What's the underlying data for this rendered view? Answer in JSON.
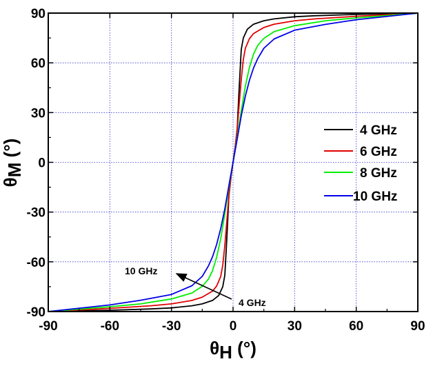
{
  "chart_data": {
    "type": "line",
    "title": "",
    "xlabel": {
      "symbol": "θ",
      "subscript": "H",
      "unit": " (°)"
    },
    "ylabel": {
      "symbol": "θ",
      "subscript": "M",
      "unit": " (°)"
    },
    "xlim": [
      -90,
      90
    ],
    "ylim": [
      -90,
      90
    ],
    "xticks": [
      -90,
      -60,
      -30,
      0,
      30,
      60,
      90
    ],
    "yticks": [
      -90,
      -60,
      -30,
      0,
      30,
      60,
      90
    ],
    "xtick_labels": [
      "-90",
      "-60",
      "-30",
      "0",
      "30",
      "60",
      "90"
    ],
    "ytick_labels": [
      "-90",
      "-60",
      "-30",
      "0",
      "30",
      "60",
      "90"
    ],
    "grid": true,
    "legend_position": "right",
    "series": [
      {
        "name": "4 GHz",
        "color": "#000000",
        "x": [
          -90,
          -60,
          -40,
          -30,
          -20,
          -15,
          -10,
          -7,
          -5,
          -4,
          -3,
          -2,
          -1,
          0,
          1,
          2,
          3,
          4,
          5,
          7,
          10,
          15,
          20,
          30,
          40,
          60,
          90
        ],
        "y": [
          -90,
          -89.2,
          -88.4,
          -87.8,
          -86.5,
          -85.4,
          -83.3,
          -80.3,
          -75.0,
          -68.0,
          -45.0,
          -20.0,
          -9.0,
          0,
          9.0,
          20.0,
          45.0,
          68.0,
          75.0,
          80.3,
          83.3,
          85.4,
          86.5,
          87.8,
          88.4,
          89.2,
          90
        ]
      },
      {
        "name": "6 GHz",
        "color": "#e00000",
        "x": [
          -90,
          -60,
          -40,
          -30,
          -20,
          -15,
          -10,
          -8,
          -6,
          -5,
          -4,
          -3,
          -2,
          -1,
          0,
          1,
          2,
          3,
          4,
          5,
          6,
          8,
          10,
          15,
          20,
          30,
          40,
          60,
          90
        ],
        "y": [
          -90,
          -88.1,
          -86.5,
          -85.4,
          -83.3,
          -81.3,
          -77.7,
          -74.6,
          -68.9,
          -62.0,
          -50.0,
          -35.0,
          -20.0,
          -9.0,
          0,
          9.0,
          20.0,
          35.0,
          50.0,
          62.0,
          68.9,
          74.6,
          77.7,
          81.3,
          83.3,
          85.4,
          86.5,
          88.1,
          90
        ]
      },
      {
        "name": "8 GHz",
        "color": "#00ee00",
        "x": [
          -90,
          -60,
          -45,
          -30,
          -20,
          -15,
          -12,
          -10,
          -8,
          -6,
          -4,
          -2,
          0,
          2,
          4,
          6,
          8,
          10,
          12,
          15,
          20,
          30,
          45,
          60,
          90
        ],
        "y": [
          -90,
          -87.1,
          -85.4,
          -82.4,
          -78.8,
          -74.8,
          -70.4,
          -65.4,
          -57.3,
          -46.0,
          -31.0,
          -15.0,
          0,
          15.0,
          31.0,
          46.0,
          57.3,
          65.4,
          70.4,
          74.8,
          78.8,
          82.4,
          85.4,
          87.1,
          90
        ]
      },
      {
        "name": "10 GHz",
        "color": "#0000e6",
        "x": [
          -90,
          -60,
          -45,
          -30,
          -20,
          -15,
          -12,
          -10,
          -8,
          -6,
          -4,
          -2,
          0,
          2,
          4,
          6,
          8,
          10,
          12,
          15,
          20,
          30,
          45,
          60,
          90
        ],
        "y": [
          -90,
          -86.0,
          -83.2,
          -79.7,
          -74.4,
          -68.8,
          -62.5,
          -57.0,
          -49.5,
          -40.0,
          -28.0,
          -14.0,
          0,
          14.0,
          28.0,
          40.0,
          49.5,
          57.0,
          62.5,
          68.8,
          74.4,
          79.7,
          83.2,
          86.0,
          90
        ]
      }
    ],
    "annotations": [
      {
        "text": "10 GHz"
      },
      {
        "text": "4 GHz"
      }
    ]
  }
}
